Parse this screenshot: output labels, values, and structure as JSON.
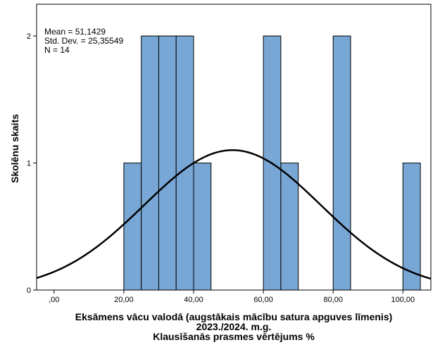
{
  "chart_data": {
    "type": "bar",
    "subtype": "histogram",
    "ylabel": "Skolēnu skaits",
    "xlabel_lines": [
      "Eksāmens vācu valodā (augstākais mācību satura apguves līmenis)",
      "2023./2024. m.g.",
      "Klausīšanās prasmes vērtējums %"
    ],
    "xlim": [
      -5,
      108
    ],
    "ylim": [
      0,
      2.25
    ],
    "x_ticks": [
      0,
      20,
      40,
      60,
      80,
      100
    ],
    "x_tick_labels": [
      ",00",
      "20,00",
      "40,00",
      "60,00",
      "80,00",
      "100,00"
    ],
    "y_ticks": [
      0,
      1,
      2
    ],
    "y_tick_labels": [
      "0",
      "1",
      "2"
    ],
    "bins": [
      {
        "start": 20,
        "end": 25,
        "count": 1
      },
      {
        "start": 25,
        "end": 30,
        "count": 2
      },
      {
        "start": 30,
        "end": 35,
        "count": 2
      },
      {
        "start": 35,
        "end": 40,
        "count": 2
      },
      {
        "start": 40,
        "end": 45,
        "count": 1
      },
      {
        "start": 60,
        "end": 65,
        "count": 2
      },
      {
        "start": 65,
        "end": 70,
        "count": 1
      },
      {
        "start": 80,
        "end": 85,
        "count": 2
      },
      {
        "start": 100,
        "end": 105,
        "count": 1
      }
    ],
    "normal_curve": {
      "mean": 51.1429,
      "std": 25.35549,
      "n": 14,
      "bin_width": 5
    },
    "stats_text": [
      "Mean = 51,1429",
      "Std. Dev. = 25,35549",
      "N = 14"
    ],
    "colors": {
      "bar_fill": "#79a7d5",
      "bar_stroke": "#000000",
      "curve": "#000000"
    },
    "grid": false
  }
}
